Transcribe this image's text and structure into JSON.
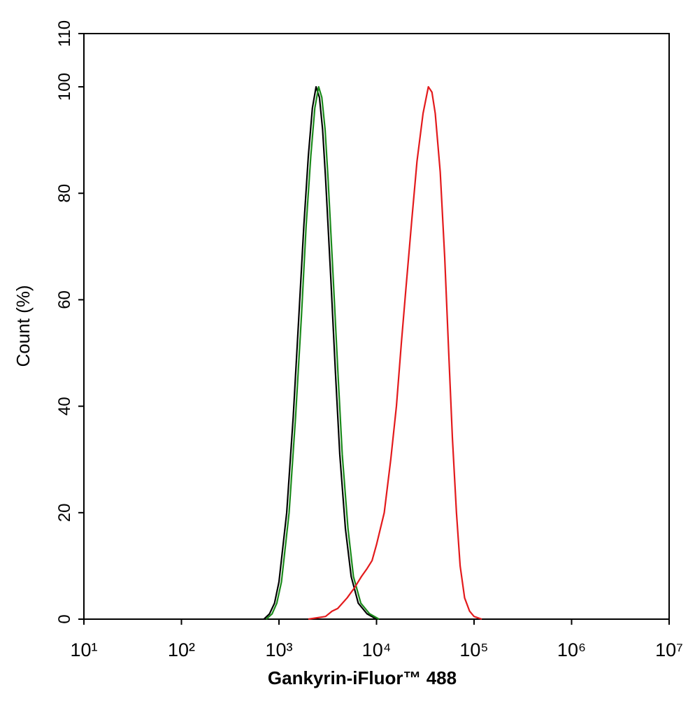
{
  "chart_data": {
    "type": "line",
    "xlabel": "Gankyrin-iFluor™ 488",
    "ylabel": "Count  (%)",
    "xscale": "log",
    "xlim": [
      10,
      10000000
    ],
    "xticks": [
      {
        "value": 10,
        "label": "10¹"
      },
      {
        "value": 100,
        "label": "10²"
      },
      {
        "value": 1000,
        "label": "10³"
      },
      {
        "value": 10000,
        "label": "10⁴"
      },
      {
        "value": 100000,
        "label": "10⁵"
      },
      {
        "value": 1000000,
        "label": "10⁶"
      },
      {
        "value": 10000000,
        "label": "10⁷"
      }
    ],
    "ylim": [
      0,
      110
    ],
    "yticks": [
      0,
      20,
      40,
      60,
      80,
      100,
      110
    ],
    "series": [
      {
        "color": "#000000",
        "x": [
          700,
          800,
          900,
          1000,
          1200,
          1400,
          1600,
          1800,
          2000,
          2200,
          2400,
          2600,
          2800,
          3000,
          3400,
          3800,
          4200,
          4800,
          5500,
          6500,
          8000,
          10000
        ],
        "values": [
          0,
          1,
          3,
          7,
          20,
          38,
          57,
          74,
          87,
          96,
          100,
          98,
          92,
          83,
          64,
          46,
          31,
          17,
          8,
          3,
          1,
          0
        ]
      },
      {
        "color": "#1a8a1a",
        "x": [
          740,
          850,
          950,
          1060,
          1270,
          1480,
          1700,
          1900,
          2120,
          2330,
          2550,
          2750,
          2970,
          3180,
          3600,
          4030,
          4450,
          5100,
          5800,
          6900,
          8500,
          10600
        ],
        "values": [
          0,
          1,
          3,
          7,
          20,
          38,
          57,
          74,
          87,
          96,
          100,
          98,
          92,
          83,
          64,
          46,
          31,
          17,
          8,
          3,
          1,
          0
        ]
      },
      {
        "color": "#e31a1c",
        "x": [
          2000,
          3000,
          3500,
          4000,
          5000,
          6000,
          7000,
          8000,
          9000,
          10000,
          12000,
          14000,
          16000,
          18000,
          20000,
          23000,
          26000,
          30000,
          34000,
          37000,
          40000,
          45000,
          50000,
          55000,
          60000,
          66000,
          72000,
          80000,
          90000,
          100000,
          120000
        ],
        "values": [
          0,
          0.5,
          1.5,
          2,
          4,
          6,
          8,
          9.5,
          11,
          14,
          20,
          30,
          40,
          52,
          62,
          75,
          86,
          95,
          100,
          99,
          95,
          84,
          68,
          50,
          34,
          20,
          10,
          4,
          1.5,
          0.5,
          0
        ]
      }
    ]
  }
}
